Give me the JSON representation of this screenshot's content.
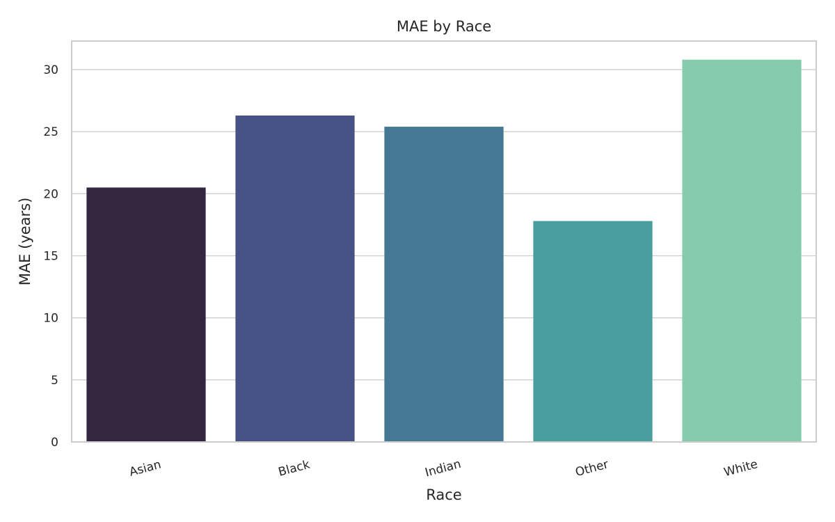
{
  "chart_data": {
    "type": "bar",
    "title": "MAE by Race",
    "xlabel": "Race",
    "ylabel": "MAE (years)",
    "categories": [
      "Asian",
      "Black",
      "Indian",
      "Other",
      "White"
    ],
    "values": [
      20.5,
      26.3,
      25.4,
      17.8,
      30.8
    ],
    "colors": [
      "#35263f",
      "#485184",
      "#447894",
      "#489e9e",
      "#86cbab"
    ],
    "ylim": [
      0,
      32.3
    ],
    "yticks": [
      0,
      5,
      10,
      15,
      20,
      25,
      30
    ],
    "grid": true,
    "legend": "none"
  }
}
